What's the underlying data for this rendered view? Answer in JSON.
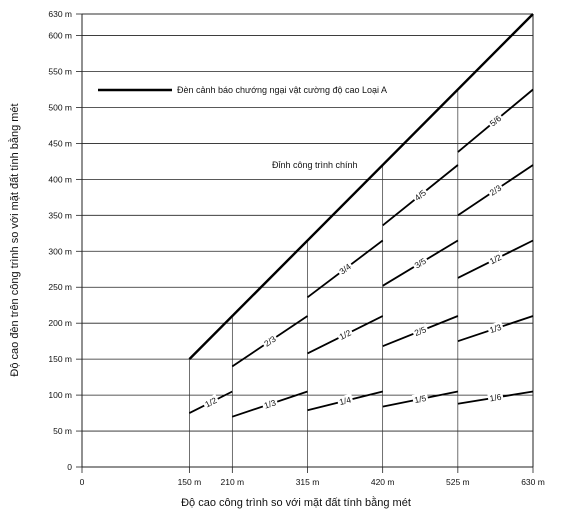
{
  "chart_data": {
    "type": "line",
    "title": "",
    "xlabel": "Độ cao công trình so với mặt đất tính bằng mét",
    "ylabel": "Độ cao đèn trên công trình so với mặt đất tính bằng mét",
    "xlim": [
      0,
      630
    ],
    "ylim": [
      0,
      630
    ],
    "x_ticks": [
      {
        "value": 0,
        "label": "0"
      },
      {
        "value": 150,
        "label": "150 m"
      },
      {
        "value": 210,
        "label": "210 m"
      },
      {
        "value": 315,
        "label": "315 m"
      },
      {
        "value": 420,
        "label": "420 m"
      },
      {
        "value": 525,
        "label": "525 m"
      },
      {
        "value": 630,
        "label": "630 m"
      }
    ],
    "y_ticks": [
      {
        "value": 0,
        "label": "0"
      },
      {
        "value": 50,
        "label": "50 m"
      },
      {
        "value": 100,
        "label": "100 m"
      },
      {
        "value": 150,
        "label": "150 m"
      },
      {
        "value": 200,
        "label": "200 m"
      },
      {
        "value": 250,
        "label": "250 m"
      },
      {
        "value": 300,
        "label": "300 m"
      },
      {
        "value": 350,
        "label": "350 m"
      },
      {
        "value": 400,
        "label": "400 m"
      },
      {
        "value": 450,
        "label": "450 m"
      },
      {
        "value": 500,
        "label": "500 m"
      },
      {
        "value": 550,
        "label": "550 m"
      },
      {
        "value": 600,
        "label": "600 m"
      },
      {
        "value": 630,
        "label": "630 m"
      }
    ],
    "grid": true,
    "legend": {
      "label": "Đèn cảnh báo chướng ngại vật cường độ cao  Loại A",
      "placement": "top-left"
    },
    "top_line": {
      "label": "Đỉnh công trình chính",
      "x": [
        150,
        630
      ],
      "y": [
        150,
        630
      ]
    },
    "vertical_dividers": [
      150,
      210,
      315,
      420,
      525
    ],
    "segments": [
      {
        "label": "1/2",
        "x": [
          150,
          210
        ],
        "y": [
          75,
          105
        ]
      },
      {
        "label": "1/3",
        "x": [
          210,
          315
        ],
        "y": [
          70,
          105
        ]
      },
      {
        "label": "2/3",
        "x": [
          210,
          315
        ],
        "y": [
          140,
          210
        ]
      },
      {
        "label": "1/4",
        "x": [
          315,
          420
        ],
        "y": [
          79,
          105
        ]
      },
      {
        "label": "1/2",
        "x": [
          315,
          420
        ],
        "y": [
          158,
          210
        ]
      },
      {
        "label": "3/4",
        "x": [
          315,
          420
        ],
        "y": [
          236,
          315
        ]
      },
      {
        "label": "1/5",
        "x": [
          420,
          525
        ],
        "y": [
          84,
          105
        ]
      },
      {
        "label": "2/5",
        "x": [
          420,
          525
        ],
        "y": [
          168,
          210
        ]
      },
      {
        "label": "3/5",
        "x": [
          420,
          525
        ],
        "y": [
          252,
          315
        ]
      },
      {
        "label": "4/5",
        "x": [
          420,
          525
        ],
        "y": [
          336,
          420
        ]
      },
      {
        "label": "1/6",
        "x": [
          525,
          630
        ],
        "y": [
          88,
          105
        ]
      },
      {
        "label": "1/3",
        "x": [
          525,
          630
        ],
        "y": [
          175,
          210
        ]
      },
      {
        "label": "1/2",
        "x": [
          525,
          630
        ],
        "y": [
          263,
          315
        ]
      },
      {
        "label": "2/3",
        "x": [
          525,
          630
        ],
        "y": [
          350,
          420
        ]
      },
      {
        "label": "5/6",
        "x": [
          525,
          630
        ],
        "y": [
          438,
          525
        ]
      }
    ]
  }
}
